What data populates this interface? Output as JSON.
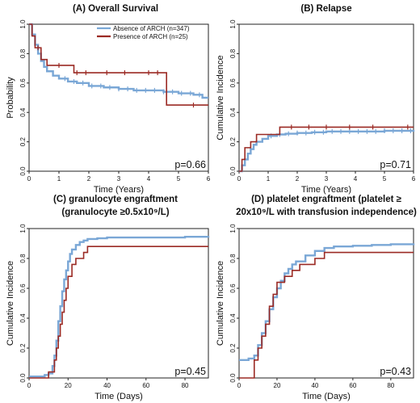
{
  "colors": {
    "absence": "#7aa7d6",
    "presence": "#9b2a24"
  },
  "chart_data": [
    {
      "type": "line",
      "title": [
        "(A) Overall Survival"
      ],
      "xlabel": "Time (Years)",
      "ylabel": "Probability",
      "xlim": [
        0,
        6
      ],
      "ylim": [
        0,
        1
      ],
      "xticks": [
        "0",
        "1",
        "2",
        "3",
        "4",
        "5",
        "6"
      ],
      "yticks": [
        "0.0",
        "0.2",
        "0.4",
        "0.6",
        "0.8",
        "1.0"
      ],
      "pvalue": "p=0.66",
      "legend": {
        "position": "top-right",
        "entries": [
          "Absence of ARCH (n=347)",
          "Presence of ARCH (n=25)"
        ]
      },
      "series": [
        {
          "name": "Absence of ARCH (n=347)",
          "step": true,
          "x": [
            0,
            0.1,
            0.2,
            0.3,
            0.4,
            0.5,
            0.6,
            0.8,
            1.0,
            1.3,
            1.6,
            2.0,
            2.5,
            3.0,
            3.5,
            4.0,
            4.5,
            5.0,
            5.5,
            5.8,
            6.0
          ],
          "y": [
            1.0,
            0.93,
            0.86,
            0.8,
            0.75,
            0.71,
            0.68,
            0.65,
            0.63,
            0.61,
            0.6,
            0.58,
            0.57,
            0.56,
            0.55,
            0.55,
            0.54,
            0.53,
            0.52,
            0.5,
            0.5
          ],
          "censor": [
            1.2,
            1.5,
            1.8,
            2.1,
            2.4,
            2.7,
            3.0,
            3.3,
            3.6,
            3.9,
            4.2,
            4.5,
            4.8,
            5.1,
            5.4,
            5.7
          ]
        },
        {
          "name": "Presence of ARCH (n=25)",
          "step": true,
          "x": [
            0,
            0.1,
            0.2,
            0.4,
            0.6,
            1.5,
            4.6,
            6.0
          ],
          "y": [
            1.0,
            0.92,
            0.84,
            0.76,
            0.72,
            0.67,
            0.45,
            0.45
          ],
          "censor": [
            0.3,
            1.0,
            1.6,
            1.9,
            2.6,
            3.2,
            4.0,
            4.3,
            5.5
          ]
        }
      ]
    },
    {
      "type": "line",
      "title": [
        "(B) Relapse"
      ],
      "xlabel": "Time (Years)",
      "ylabel": "Cumulative Incidence",
      "xlim": [
        0,
        6
      ],
      "ylim": [
        0,
        1
      ],
      "xticks": [
        "0",
        "1",
        "2",
        "3",
        "4",
        "5",
        "6"
      ],
      "yticks": [
        "0.0",
        "0.2",
        "0.4",
        "0.6",
        "0.8",
        "1.0"
      ],
      "pvalue": "p=0.71",
      "series": [
        {
          "name": "Absence of ARCH (n=347)",
          "step": true,
          "x": [
            0,
            0.1,
            0.2,
            0.3,
            0.4,
            0.5,
            0.6,
            0.8,
            1.0,
            1.3,
            1.6,
            2.0,
            2.5,
            3.0,
            4.0,
            5.0,
            6.0
          ],
          "y": [
            0,
            0.04,
            0.08,
            0.12,
            0.15,
            0.18,
            0.2,
            0.22,
            0.24,
            0.25,
            0.255,
            0.26,
            0.265,
            0.27,
            0.27,
            0.275,
            0.28
          ],
          "censor": [
            1.1,
            1.4,
            1.7,
            2.0,
            2.3,
            2.6,
            2.9,
            3.2,
            3.5,
            3.8,
            4.1,
            4.4,
            4.7,
            5.0,
            5.3,
            5.6,
            5.9
          ]
        },
        {
          "name": "Presence of ARCH (n=25)",
          "step": true,
          "x": [
            0,
            0.1,
            0.2,
            0.4,
            0.6,
            1.4,
            6.0
          ],
          "y": [
            0,
            0.08,
            0.16,
            0.2,
            0.25,
            0.3,
            0.3
          ],
          "censor": [
            1.8,
            2.4,
            3.0,
            3.8,
            4.6,
            5.8
          ]
        }
      ]
    },
    {
      "type": "line",
      "title": [
        "(C) granulocyte engraftment",
        "(granulocyte ≥0.5x10⁹/L)"
      ],
      "xlabel": "Time (Days)",
      "ylabel": "Cumulative Incidence",
      "xlim": [
        0,
        92
      ],
      "ylim": [
        0,
        1
      ],
      "xticks": [
        "0",
        "20",
        "40",
        "60",
        "80"
      ],
      "yticks": [
        "0.0",
        "0.2",
        "0.4",
        "0.6",
        "0.8",
        "1.0"
      ],
      "pvalue": "p=0.45",
      "series": [
        {
          "name": "Absence of ARCH (n=347)",
          "step": true,
          "x": [
            0,
            8,
            10,
            12,
            13,
            14,
            15,
            16,
            17,
            18,
            19,
            20,
            21,
            22,
            24,
            26,
            28,
            30,
            35,
            40,
            60,
            80,
            92
          ],
          "y": [
            0.01,
            0.02,
            0.03,
            0.08,
            0.15,
            0.25,
            0.38,
            0.48,
            0.58,
            0.66,
            0.72,
            0.78,
            0.83,
            0.86,
            0.89,
            0.91,
            0.92,
            0.93,
            0.935,
            0.94,
            0.94,
            0.945,
            0.95
          ]
        },
        {
          "name": "Presence of ARCH (n=25)",
          "step": true,
          "x": [
            0,
            10,
            13,
            14,
            15,
            16,
            17,
            18,
            19,
            20,
            22,
            24,
            28,
            30,
            92
          ],
          "y": [
            0,
            0.04,
            0.12,
            0.2,
            0.28,
            0.36,
            0.44,
            0.52,
            0.6,
            0.68,
            0.76,
            0.8,
            0.84,
            0.88,
            0.88
          ]
        }
      ]
    },
    {
      "type": "line",
      "title": [
        "(D)  platelet engraftment (platelet ≥",
        "20x10⁹/L with transfusion independence)"
      ],
      "xlabel": "Time (Days)",
      "ylabel": "Cumulative Incidence",
      "xlim": [
        0,
        92
      ],
      "ylim": [
        0,
        1
      ],
      "xticks": [
        "0",
        "20",
        "40",
        "60",
        "80"
      ],
      "yticks": [
        "0.0",
        "0.2",
        "0.4",
        "0.6",
        "0.8",
        "1.0"
      ],
      "pvalue": "p=0.43",
      "series": [
        {
          "name": "Absence of ARCH (n=347)",
          "step": true,
          "x": [
            0,
            5,
            8,
            10,
            12,
            14,
            16,
            18,
            20,
            22,
            24,
            26,
            28,
            30,
            35,
            40,
            45,
            50,
            60,
            70,
            80,
            92
          ],
          "y": [
            0.12,
            0.13,
            0.15,
            0.22,
            0.3,
            0.38,
            0.46,
            0.54,
            0.6,
            0.65,
            0.7,
            0.73,
            0.76,
            0.78,
            0.82,
            0.85,
            0.87,
            0.88,
            0.885,
            0.89,
            0.895,
            0.9
          ]
        },
        {
          "name": "Presence of ARCH (n=25)",
          "step": true,
          "x": [
            0,
            8,
            10,
            12,
            14,
            16,
            18,
            20,
            24,
            28,
            32,
            40,
            45,
            92
          ],
          "y": [
            0,
            0.12,
            0.2,
            0.28,
            0.36,
            0.48,
            0.56,
            0.64,
            0.68,
            0.72,
            0.76,
            0.8,
            0.84,
            0.84
          ]
        }
      ]
    }
  ]
}
